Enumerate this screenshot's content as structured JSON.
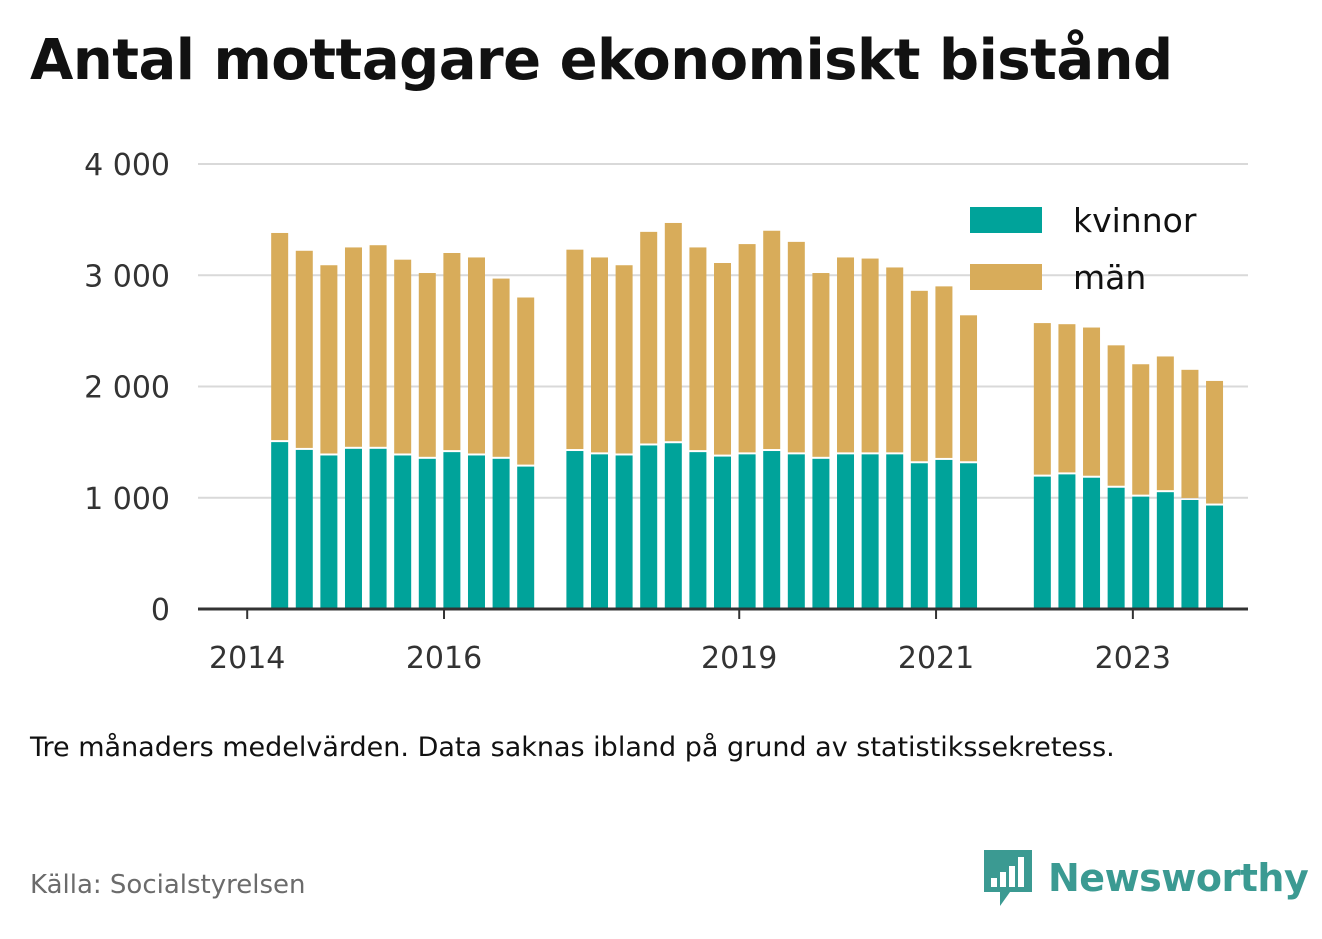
{
  "title": "Antal mottagare ekonomiskt bistånd",
  "note": "Tre månaders medelvärden. Data saknas ibland på grund av statistikssekretess.",
  "source": "Källa: Socialstyrelsen",
  "brand": {
    "name": "Newsworthy",
    "logo_icon": "bar-chart-speech-bubble-icon"
  },
  "colors": {
    "kvinnor": "#00a39a",
    "man": "#d8ac5a",
    "grid": "#d9d9d9",
    "axis": "#333333"
  },
  "chart_data": {
    "type": "bar",
    "stacked": true,
    "ylim": [
      0,
      4000
    ],
    "y_ticks": [
      {
        "value": 0,
        "label": "0"
      },
      {
        "value": 1000,
        "label": "1 000"
      },
      {
        "value": 2000,
        "label": "2 000"
      },
      {
        "value": 3000,
        "label": "3 000"
      },
      {
        "value": 4000,
        "label": "4 000"
      }
    ],
    "x_ticks": [
      {
        "value": 2014.0,
        "label": "2014"
      },
      {
        "value": 2016.0,
        "label": "2016"
      },
      {
        "value": 2019.0,
        "label": "2019"
      },
      {
        "value": 2021.0,
        "label": "2021"
      },
      {
        "value": 2023.0,
        "label": "2023"
      }
    ],
    "xlim": [
      2013.5,
      2024.17
    ],
    "legend": {
      "position": "top-right"
    },
    "series": [
      {
        "name": "kvinnor",
        "x": [
          2014.33,
          2014.58,
          2014.83,
          2015.08,
          2015.33,
          2015.58,
          2015.83,
          2016.08,
          2016.33,
          2016.58,
          2016.83,
          2017.33,
          2017.58,
          2017.83,
          2018.08,
          2018.33,
          2018.58,
          2018.83,
          2019.08,
          2019.33,
          2019.58,
          2019.83,
          2020.08,
          2020.33,
          2020.58,
          2020.83,
          2021.08,
          2021.33,
          2022.08,
          2022.33,
          2022.58,
          2022.83,
          2023.08,
          2023.33,
          2023.58,
          2023.83
        ],
        "values": [
          1500,
          1430,
          1380,
          1440,
          1440,
          1380,
          1350,
          1410,
          1380,
          1350,
          1280,
          1420,
          1390,
          1380,
          1470,
          1490,
          1410,
          1370,
          1390,
          1420,
          1390,
          1350,
          1390,
          1390,
          1390,
          1310,
          1340,
          1310,
          1190,
          1210,
          1180,
          1090,
          1010,
          1050,
          980,
          930
        ]
      },
      {
        "name": "män",
        "x": [
          2014.33,
          2014.58,
          2014.83,
          2015.08,
          2015.33,
          2015.58,
          2015.83,
          2016.08,
          2016.33,
          2016.58,
          2016.83,
          2017.33,
          2017.58,
          2017.83,
          2018.08,
          2018.33,
          2018.58,
          2018.83,
          2019.08,
          2019.33,
          2019.58,
          2019.83,
          2020.08,
          2020.33,
          2020.58,
          2020.83,
          2021.08,
          2021.33,
          2022.08,
          2022.33,
          2022.58,
          2022.83,
          2023.08,
          2023.33,
          2023.58,
          2023.83
        ],
        "values": [
          1880,
          1790,
          1710,
          1810,
          1830,
          1760,
          1670,
          1790,
          1780,
          1620,
          1520,
          1810,
          1770,
          1710,
          1920,
          1980,
          1840,
          1740,
          1890,
          1980,
          1910,
          1670,
          1770,
          1760,
          1680,
          1550,
          1560,
          1330,
          1380,
          1350,
          1350,
          1280,
          1190,
          1220,
          1170,
          1120
        ]
      }
    ]
  }
}
